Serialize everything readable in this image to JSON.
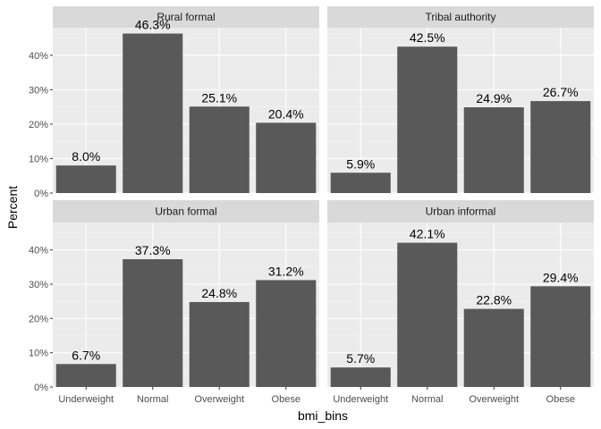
{
  "chart_data": {
    "type": "bar",
    "xlabel": "bmi_bins",
    "ylabel": "Percent",
    "ylim": [
      0,
      0.48
    ],
    "yticks": [
      0,
      0.1,
      0.2,
      0.3,
      0.4
    ],
    "ytick_labels": [
      "0%",
      "10%",
      "20%",
      "30%",
      "40%"
    ],
    "categories": [
      "Underweight",
      "Normal",
      "Overweight",
      "Obese"
    ],
    "facets": [
      {
        "name": "Rural formal",
        "values": [
          0.08,
          0.463,
          0.251,
          0.204
        ],
        "labels": [
          "8.0%",
          "46.3%",
          "25.1%",
          "20.4%"
        ]
      },
      {
        "name": "Tribal authority",
        "values": [
          0.059,
          0.425,
          0.249,
          0.267
        ],
        "labels": [
          "5.9%",
          "42.5%",
          "24.9%",
          "26.7%"
        ]
      },
      {
        "name": "Urban formal",
        "values": [
          0.067,
          0.373,
          0.248,
          0.312
        ],
        "labels": [
          "6.7%",
          "37.3%",
          "24.8%",
          "31.2%"
        ]
      },
      {
        "name": "Urban informal",
        "values": [
          0.057,
          0.421,
          0.228,
          0.294
        ],
        "labels": [
          "5.7%",
          "42.1%",
          "22.8%",
          "29.4%"
        ]
      }
    ],
    "grid": true,
    "colors": {
      "panel_bg": "#ebebeb",
      "strip_bg": "#d9d9d9",
      "bar": "#595959",
      "grid_major": "#ffffff",
      "grid_minor": "#f5f5f5"
    }
  }
}
